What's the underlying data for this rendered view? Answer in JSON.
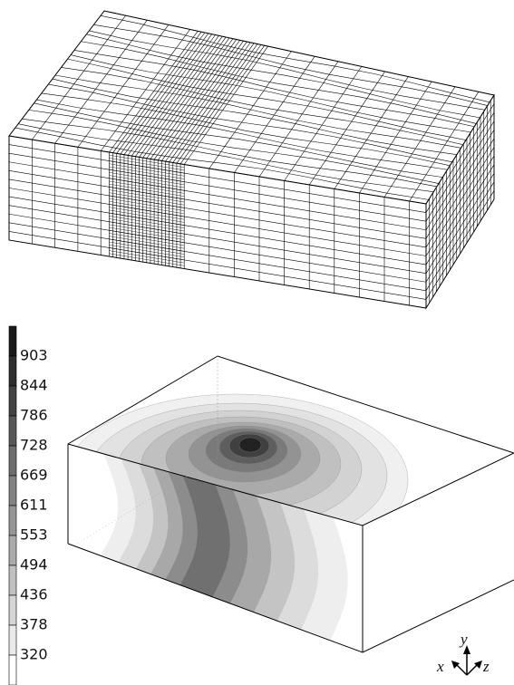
{
  "colorbar": {
    "labels": [
      "903",
      "844",
      "786",
      "728",
      "669",
      "611",
      "553",
      "494",
      "436",
      "378",
      "320"
    ]
  },
  "axes": {
    "x": "x",
    "y": "y",
    "z": "z"
  }
}
